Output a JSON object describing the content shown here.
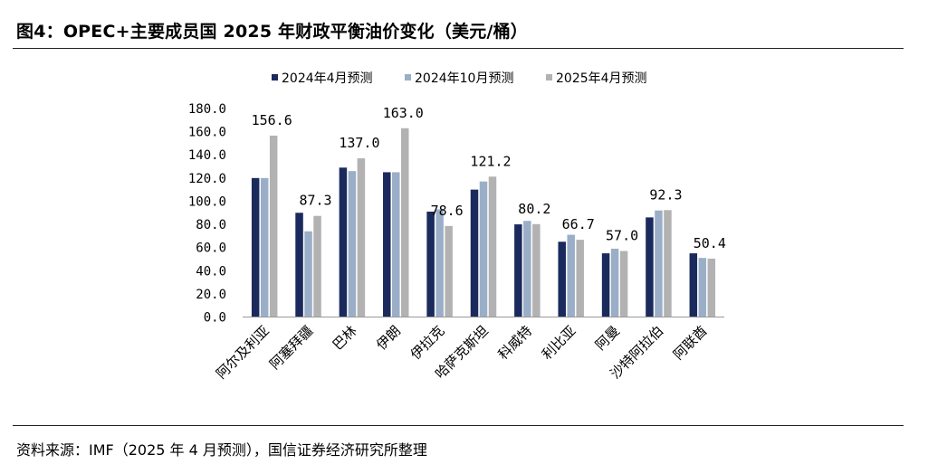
{
  "header": {
    "title": "图4：OPEC+主要成员国 2025 年财政平衡油价变化（美元/桶）"
  },
  "footer": {
    "source": "资料来源：IMF（2025 年 4 月预测），国信证券经济研究所整理"
  },
  "colors": {
    "series_2024_04": "#1b2a5c",
    "series_2024_10": "#9aaec8",
    "series_2025_04": "#b2b2b2",
    "axis": "#999999"
  },
  "chart_data": {
    "type": "bar",
    "title": "",
    "xlabel": "",
    "ylabel": "",
    "ylim": [
      0,
      180
    ],
    "yticks": [
      "0.0",
      "20.0",
      "40.0",
      "60.0",
      "80.0",
      "100.0",
      "120.0",
      "140.0",
      "160.0",
      "180.0"
    ],
    "grid": false,
    "legend_position": "top-center",
    "categories": [
      "阿尔及利亚",
      "阿塞拜疆",
      "巴林",
      "伊朗",
      "伊拉克",
      "哈萨克斯坦",
      "科威特",
      "利比亚",
      "阿曼",
      "沙特阿拉伯",
      "阿联酋"
    ],
    "series": [
      {
        "name": "2024年4月预测",
        "values": [
          120,
          90,
          129,
          125,
          91,
          110,
          80,
          65,
          55,
          86,
          55
        ]
      },
      {
        "name": "2024年10月预测",
        "values": [
          120,
          74,
          126,
          125,
          93,
          117,
          83,
          71,
          59,
          92,
          51
        ]
      },
      {
        "name": "2025年4月预测",
        "values": [
          156.6,
          87.3,
          137.0,
          163.0,
          78.6,
          121.2,
          80.2,
          66.7,
          57.0,
          92.3,
          50.4
        ]
      }
    ],
    "data_labels": [
      "156.6",
      "87.3",
      "137.0",
      "163.0",
      "78.6",
      "121.2",
      "80.2",
      "66.7",
      "57.0",
      "92.3",
      "50.4"
    ],
    "data_label_series": 2
  }
}
